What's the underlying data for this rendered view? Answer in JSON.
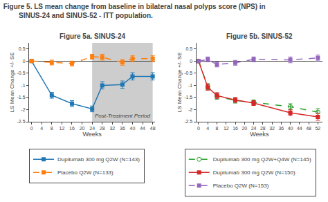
{
  "title": "Figure 5. LS mean change from baseline in bilateral nasal polyps score (NPS) in\n        SINUS-24 and SINUS-52 - ITT population.",
  "chart_data": [
    {
      "type": "line",
      "title": "Figure 5a. SINUS-24",
      "xlabel": "Weeks",
      "ylabel": "LS Mean Change +/- SE",
      "x": [
        0,
        8,
        16,
        24,
        28,
        36,
        40,
        48
      ],
      "series": [
        {
          "name": "Dupilumab 300 mg Q2W (N=143)",
          "values": [
            0.0,
            -1.41,
            -1.75,
            -1.97,
            -1.0,
            -0.97,
            -0.63,
            -0.63
          ],
          "errors": [
            0.0,
            0.12,
            0.12,
            0.12,
            0.15,
            0.15,
            0.15,
            0.15
          ],
          "marker": "square",
          "line_style": "solid"
        },
        {
          "name": "Placebo Q2W (N=133)",
          "values": [
            0.0,
            -0.06,
            -0.1,
            0.18,
            0.16,
            -0.05,
            0.1,
            0.1
          ],
          "errors": [
            0.0,
            0.1,
            0.1,
            0.1,
            0.12,
            0.12,
            0.12,
            0.12
          ],
          "marker": "square",
          "line_style": "dashed"
        }
      ],
      "shaded_regions": [
        {
          "x0": 24,
          "x1": 48,
          "color": "#b8b8b8"
        }
      ],
      "annotations": [
        {
          "text": "Post-Treatment Period",
          "x": 36,
          "y": -2.25
        }
      ],
      "xlim": [
        -1,
        49
      ],
      "ylim": [
        -2.5,
        0.75
      ],
      "xticks": [
        0,
        4,
        8,
        12,
        16,
        20,
        24,
        28,
        32,
        36,
        40,
        44,
        48
      ],
      "yticks": [
        -2.5,
        -2,
        -1.5,
        -1,
        -0.5,
        0,
        0.5
      ],
      "grid": false,
      "legend": "bottom"
    },
    {
      "type": "line",
      "title": "Figure 5b. SINUS-52",
      "xlabel": "Weeks",
      "ylabel": "LS Mean Change +/- SE",
      "x": [
        0,
        4,
        8,
        16,
        24,
        40,
        52
      ],
      "series": [
        {
          "name": "Dupilumab 300 mg Q2W+Q4W (N=145)",
          "values": [
            0.0,
            -1.05,
            -1.45,
            -1.63,
            -1.7,
            -1.88,
            -2.1
          ],
          "errors": [
            0.0,
            0.12,
            0.12,
            0.1,
            0.1,
            0.12,
            0.14
          ],
          "marker": "circle-open",
          "line_style": "dashed"
        },
        {
          "name": "Dupilumab 300 mg Q2W (N=150)",
          "values": [
            0.0,
            -1.08,
            -1.42,
            -1.6,
            -1.73,
            -2.13,
            -2.3
          ],
          "errors": [
            0.0,
            0.12,
            0.12,
            0.1,
            0.1,
            0.12,
            0.14
          ],
          "marker": "square",
          "line_style": "solid"
        },
        {
          "name": "Placebo Q2W (N=153)",
          "values": [
            0.0,
            0.07,
            -0.14,
            -0.07,
            0.07,
            0.05,
            0.13
          ],
          "errors": [
            0.0,
            0.1,
            0.1,
            0.1,
            0.1,
            0.12,
            0.12
          ],
          "marker": "square",
          "line_style": "dashed"
        }
      ],
      "xlim": [
        -1,
        54
      ],
      "ylim": [
        -2.5,
        0.75
      ],
      "xticks": [
        0,
        4,
        8,
        12,
        16,
        20,
        24,
        28,
        32,
        36,
        40,
        44,
        48,
        52
      ],
      "yticks": [
        -2.5,
        -2,
        -1.5,
        -1,
        -0.5,
        0,
        0.5
      ],
      "grid": false,
      "legend": "bottom"
    }
  ]
}
